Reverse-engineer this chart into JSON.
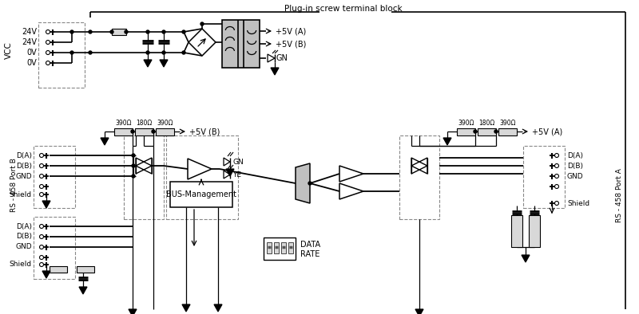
{
  "bg": "#ffffff",
  "res_fill": "#d8d8d8",
  "box_fill": "#c0c0c0",
  "gray_fill": "#b8b8b8",
  "texts": {
    "terminal": "Plug-in screw terminal block",
    "vcc": "VCC",
    "port_b": "RS - 458 Port B",
    "port_a": "RS - 458 Port A",
    "bus_mgmt": "BUS-Management",
    "data_lbl": "DATA",
    "rate_lbl": "RATE",
    "gn1": "GN",
    "ye1": "YE",
    "5va_top": "+5V (A)",
    "5vb_top": "+5V (B)",
    "gn_top": "GN",
    "5vb_mid": "+5V (B)",
    "5va_mid": "+5V (A)",
    "r1": "390Ω",
    "r2": "180Ω",
    "r3": "390Ω",
    "r4": "390Ω",
    "r5": "180Ω",
    "r6": "390Ω",
    "da": "D(A)",
    "db": "D(B)",
    "gnd": "GND",
    "shield": "Shield",
    "24v1": "24V",
    "24v2": "24V",
    "0v1": "0V",
    "0v2": "0V"
  }
}
